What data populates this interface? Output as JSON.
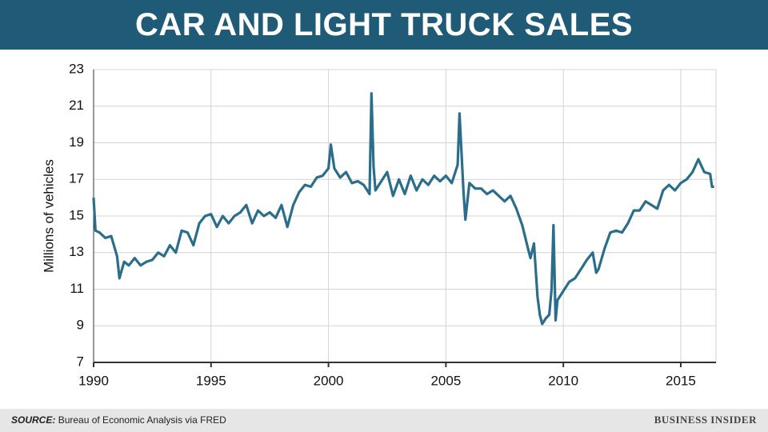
{
  "chart_data": {
    "type": "line",
    "title": "CAR AND LIGHT TRUCK SALES",
    "y_label": "Millions of vehicles",
    "source": {
      "label": "SOURCE:",
      "text": "Bureau of Economic Analysis via FRED"
    },
    "brand": "BUSINESS INSIDER",
    "xlim": [
      1990,
      2016.5
    ],
    "xticks": [
      1990,
      1995,
      2000,
      2005,
      2010,
      2015
    ],
    "ylim": [
      7,
      23
    ],
    "yticks": [
      7,
      9,
      11,
      13,
      15,
      17,
      19,
      21,
      23
    ],
    "grid": true,
    "x": [
      1990.0,
      1990.08,
      1990.25,
      1990.5,
      1990.75,
      1991.0,
      1991.1,
      1991.3,
      1991.5,
      1991.75,
      1992.0,
      1992.25,
      1992.5,
      1992.75,
      1993.0,
      1993.25,
      1993.5,
      1993.75,
      1994.0,
      1994.25,
      1994.5,
      1994.75,
      1995.0,
      1995.25,
      1995.5,
      1995.75,
      1996.0,
      1996.25,
      1996.5,
      1996.75,
      1997.0,
      1997.25,
      1997.5,
      1997.75,
      1998.0,
      1998.25,
      1998.5,
      1998.75,
      1999.0,
      1999.25,
      1999.5,
      1999.75,
      2000.0,
      2000.1,
      2000.25,
      2000.5,
      2000.75,
      2001.0,
      2001.25,
      2001.5,
      2001.75,
      2001.83,
      2001.92,
      2002.0,
      2002.25,
      2002.5,
      2002.75,
      2003.0,
      2003.25,
      2003.5,
      2003.75,
      2004.0,
      2004.25,
      2004.5,
      2004.75,
      2005.0,
      2005.25,
      2005.5,
      2005.58,
      2005.75,
      2005.83,
      2006.0,
      2006.25,
      2006.5,
      2006.75,
      2007.0,
      2007.25,
      2007.5,
      2007.75,
      2008.0,
      2008.25,
      2008.5,
      2008.6,
      2008.75,
      2008.9,
      2009.0,
      2009.1,
      2009.25,
      2009.4,
      2009.5,
      2009.58,
      2009.67,
      2009.75,
      2010.0,
      2010.25,
      2010.5,
      2010.75,
      2011.0,
      2011.25,
      2011.4,
      2011.5,
      2011.75,
      2012.0,
      2012.25,
      2012.5,
      2012.75,
      2013.0,
      2013.25,
      2013.5,
      2013.75,
      2014.0,
      2014.25,
      2014.5,
      2014.75,
      2015.0,
      2015.25,
      2015.5,
      2015.75,
      2016.0,
      2016.25,
      2016.33,
      2016.42
    ],
    "series": [
      {
        "name": "Car and light truck sales",
        "color": "#2a6e8c",
        "values": [
          16.0,
          14.2,
          14.1,
          13.8,
          13.9,
          12.8,
          11.6,
          12.5,
          12.3,
          12.7,
          12.3,
          12.5,
          12.6,
          13.0,
          12.8,
          13.4,
          13.0,
          14.2,
          14.1,
          13.4,
          14.6,
          15.0,
          15.1,
          14.4,
          15.0,
          14.6,
          15.0,
          15.2,
          15.6,
          14.6,
          15.3,
          15.0,
          15.2,
          14.9,
          15.6,
          14.4,
          15.6,
          16.3,
          16.7,
          16.6,
          17.1,
          17.2,
          17.6,
          18.9,
          17.6,
          17.1,
          17.4,
          16.8,
          16.9,
          16.7,
          16.2,
          21.7,
          17.7,
          16.4,
          16.9,
          17.4,
          16.1,
          17.0,
          16.2,
          17.2,
          16.4,
          17.0,
          16.7,
          17.2,
          16.9,
          17.2,
          16.8,
          17.8,
          20.6,
          16.3,
          14.8,
          16.8,
          16.5,
          16.5,
          16.2,
          16.4,
          16.1,
          15.8,
          16.1,
          15.4,
          14.5,
          13.2,
          12.7,
          13.5,
          10.6,
          9.6,
          9.1,
          9.4,
          9.6,
          11.0,
          14.5,
          9.3,
          10.4,
          10.9,
          11.4,
          11.6,
          12.1,
          12.6,
          13.0,
          11.9,
          12.1,
          13.2,
          14.1,
          14.2,
          14.1,
          14.6,
          15.3,
          15.3,
          15.8,
          15.6,
          15.4,
          16.4,
          16.7,
          16.4,
          16.8,
          17.0,
          17.4,
          18.1,
          17.4,
          17.3,
          16.6,
          16.6
        ]
      }
    ]
  }
}
